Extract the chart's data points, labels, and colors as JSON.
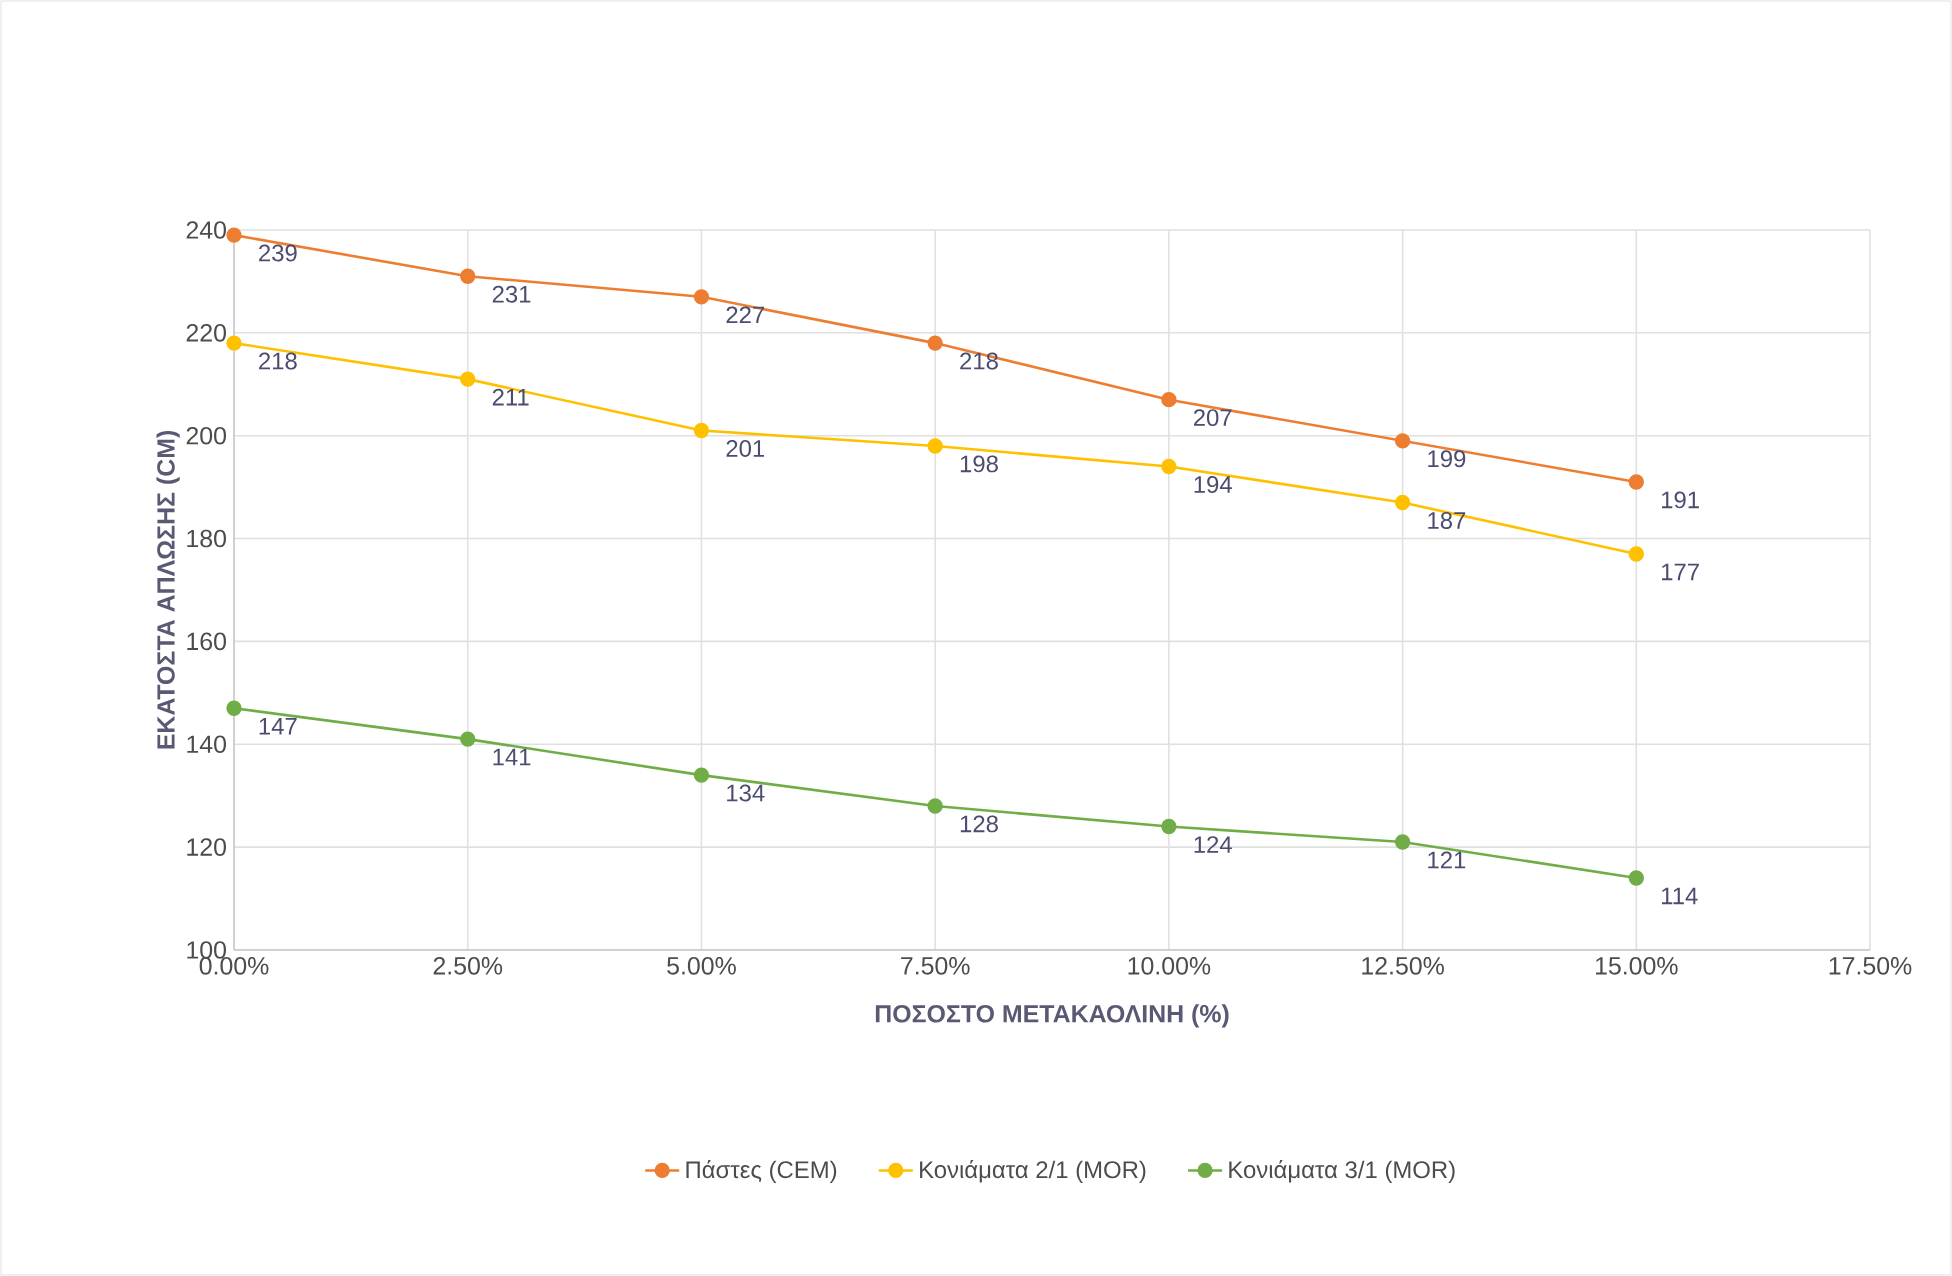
{
  "chart_data": {
    "type": "line",
    "xlabel": "ΠΟΣΟΣΤΟ  ΜΕΤΑΚΑΟΛΙΝΗ (%)",
    "ylabel": "ΕΚΑΤΟΣΤΑ  ΑΠΛΩΣΗΣ (CM)",
    "x": [
      0,
      2.5,
      5,
      7.5,
      10,
      12.5,
      15
    ],
    "series": [
      {
        "name": "Πάστες (CEM)",
        "color": "#ed7d31",
        "values": [
          239,
          231,
          227,
          218,
          207,
          199,
          191
        ]
      },
      {
        "name": "Κονιάματα 2/1 (MOR)",
        "color": "#ffc000",
        "values": [
          218,
          211,
          201,
          198,
          194,
          187,
          177
        ]
      },
      {
        "name": "Κονιάματα 3/1 (MOR)",
        "color": "#70ad47",
        "values": [
          147,
          141,
          134,
          128,
          124,
          121,
          114
        ]
      }
    ],
    "xlim": [
      0,
      17.5
    ],
    "xticks": [
      {
        "value": 0,
        "label": "0.00%"
      },
      {
        "value": 2.5,
        "label": "2.50%"
      },
      {
        "value": 5,
        "label": "5.00%"
      },
      {
        "value": 7.5,
        "label": "7.50%"
      },
      {
        "value": 10,
        "label": "10.00%"
      },
      {
        "value": 12.5,
        "label": "12.50%"
      },
      {
        "value": 15,
        "label": "15.00%"
      },
      {
        "value": 17.5,
        "label": "17.50%"
      }
    ],
    "ylim": [
      100,
      240
    ],
    "yticks": [
      100,
      120,
      140,
      160,
      180,
      200,
      220,
      240
    ],
    "grid": true,
    "legend": "bottom",
    "marker": "circle",
    "line_style": "solid",
    "data_labels": true
  }
}
